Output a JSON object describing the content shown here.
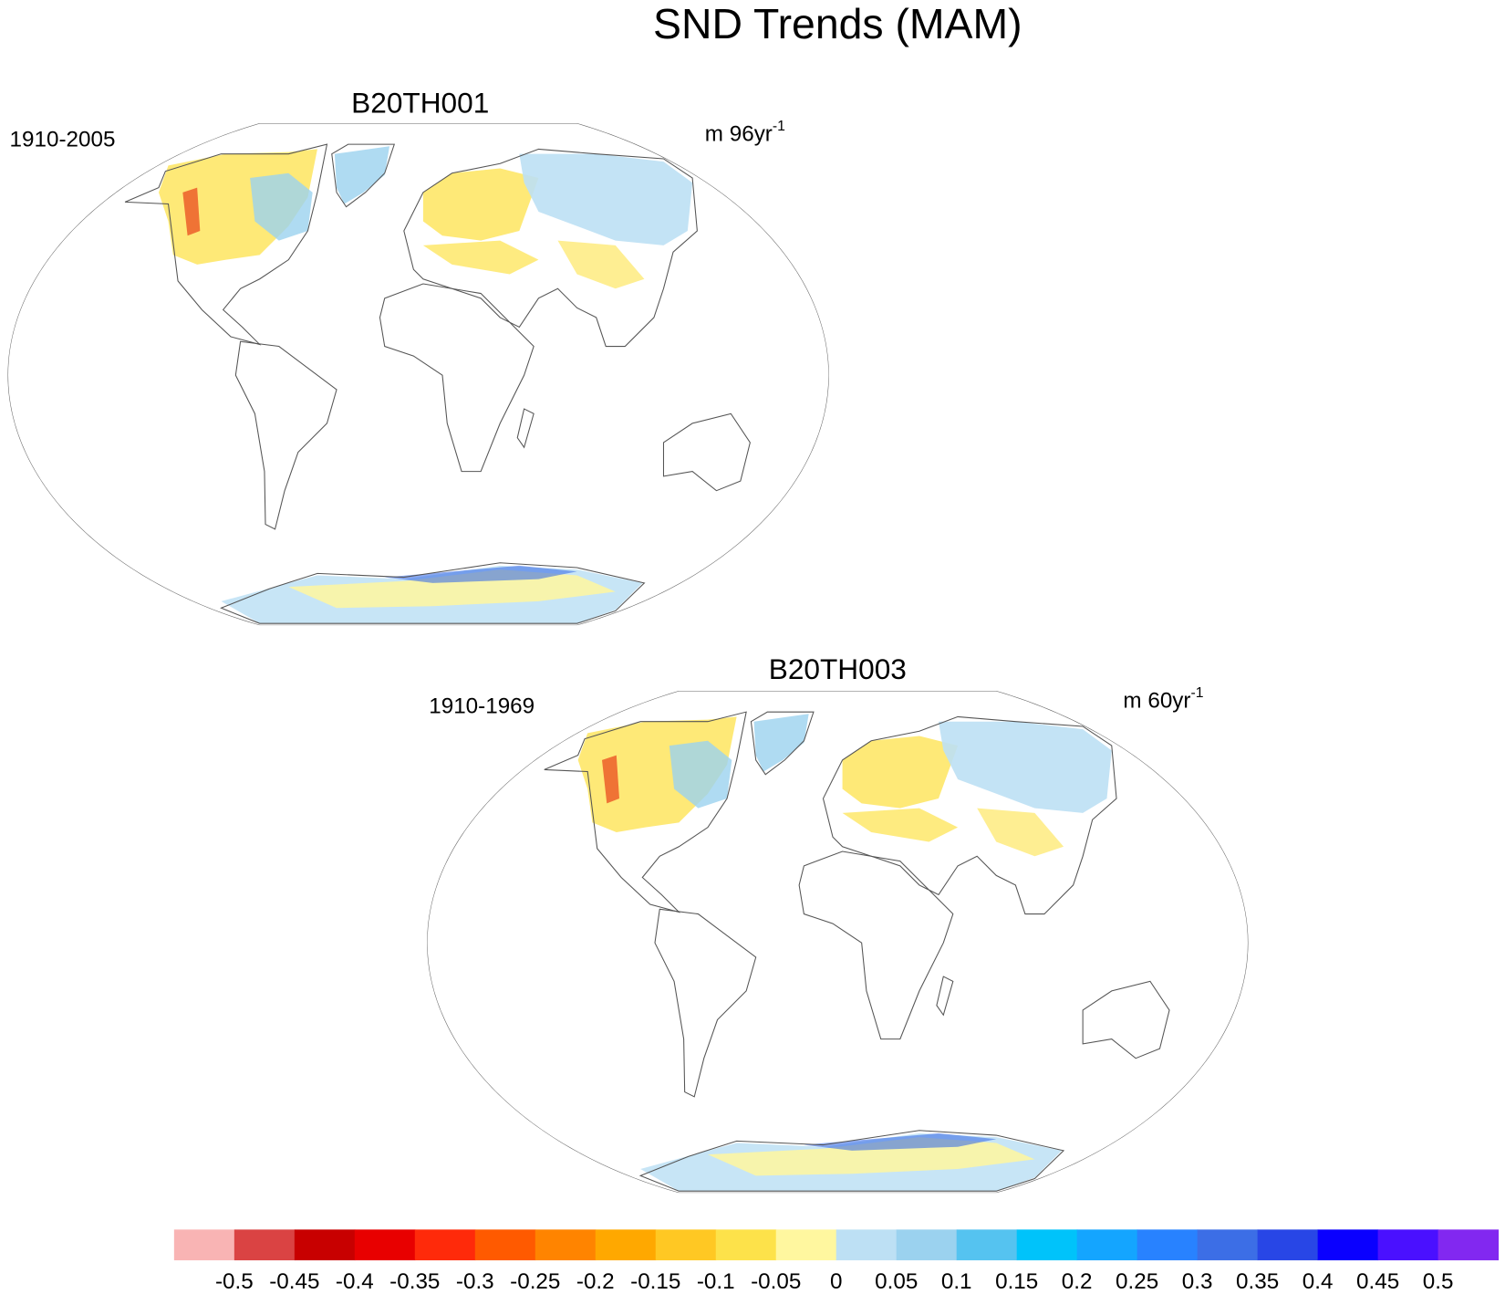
{
  "title": "SND Trends (MAM)",
  "panels": [
    {
      "title": "B20TH001",
      "period": "1910-2005",
      "units": "m 96yr",
      "units_exp": "-1"
    },
    {
      "title": "B20TH003",
      "period": "1910-1969",
      "units": "m 60yr",
      "units_exp": "-1"
    }
  ],
  "colorbar": {
    "levels": [
      -0.5,
      -0.45,
      -0.4,
      -0.35,
      -0.3,
      -0.25,
      -0.2,
      -0.15,
      -0.1,
      -0.05,
      0,
      0.05,
      0.1,
      0.15,
      0.2,
      0.25,
      0.3,
      0.35,
      0.4,
      0.45,
      0.5
    ],
    "colors": [
      "#f9b4b4",
      "#da4343",
      "#c80000",
      "#e80000",
      "#ff2a0a",
      "#ff5a00",
      "#ff8400",
      "#ffa800",
      "#ffc823",
      "#fde24a",
      "#fff79f",
      "#bde0f4",
      "#9bd2ef",
      "#55c3f0",
      "#00c3fa",
      "#14a5ff",
      "#2882ff",
      "#3c6ee6",
      "#2846e6",
      "#0a00ff",
      "#4a10ff",
      "#8228f0"
    ]
  }
}
